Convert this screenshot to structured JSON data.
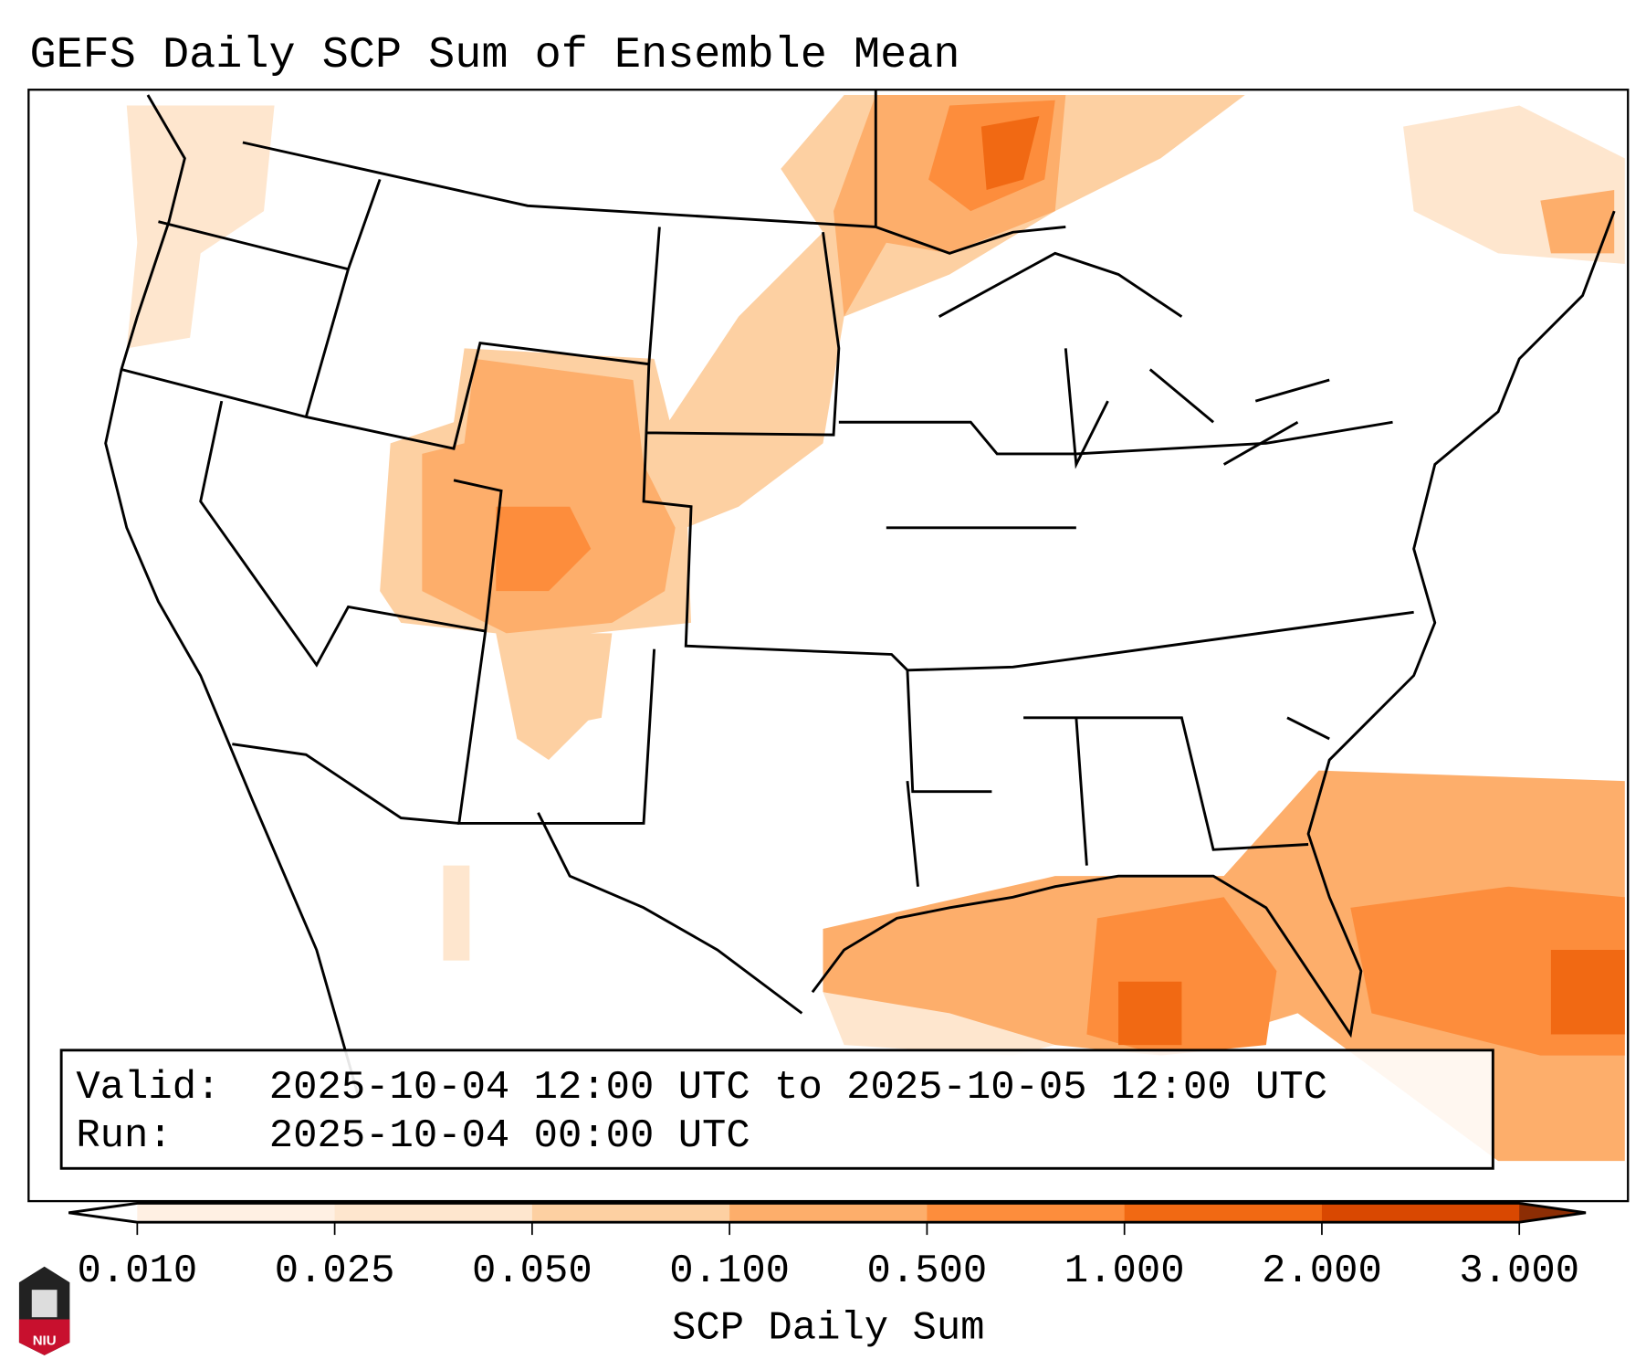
{
  "title": "GEFS Daily SCP Sum of Ensemble Mean",
  "info_box": {
    "valid_label": "Valid:",
    "valid_value": "2025-10-04 12:00 UTC to 2025-10-05 12:00 UTC",
    "run_label": "Run:",
    "run_value": "2025-10-04 00:00 UTC"
  },
  "colorbar": {
    "label": "SCP Daily Sum",
    "ticks": [
      "0.010",
      "0.025",
      "0.050",
      "0.100",
      "0.500",
      "1.000",
      "2.000",
      "3.000"
    ],
    "colors": [
      "#fff0e3",
      "#fee6ce",
      "#fdd0a2",
      "#fdae6b",
      "#fd8d3c",
      "#f16913",
      "#d94801",
      "#8c2d04"
    ]
  },
  "logo": {
    "text": "NIU"
  }
}
